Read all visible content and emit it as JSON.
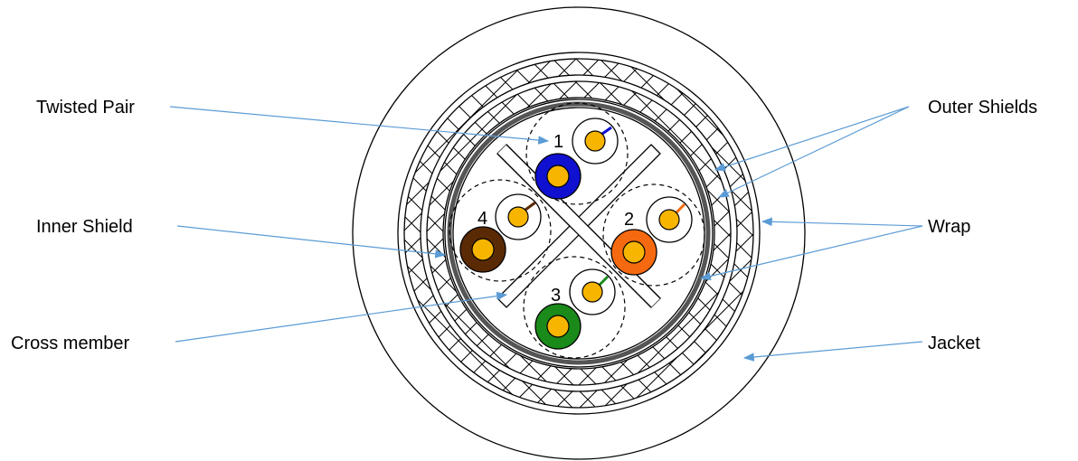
{
  "labels": {
    "twisted_pair": "Twisted Pair",
    "inner_shield": "Inner Shield",
    "cross_member": "Cross member",
    "outer_shields": "Outer Shields",
    "wrap": "Wrap",
    "jacket": "Jacket"
  },
  "pairs": [
    {
      "number": "1",
      "color": "#1010d0"
    },
    {
      "number": "2",
      "color": "#f56a10"
    },
    {
      "number": "3",
      "color": "#1a8a1a"
    },
    {
      "number": "4",
      "color": "#5a2a05"
    }
  ],
  "colors": {
    "leader": "#5b9bd5",
    "conductor": "#f7b500",
    "outline": "#000000"
  }
}
